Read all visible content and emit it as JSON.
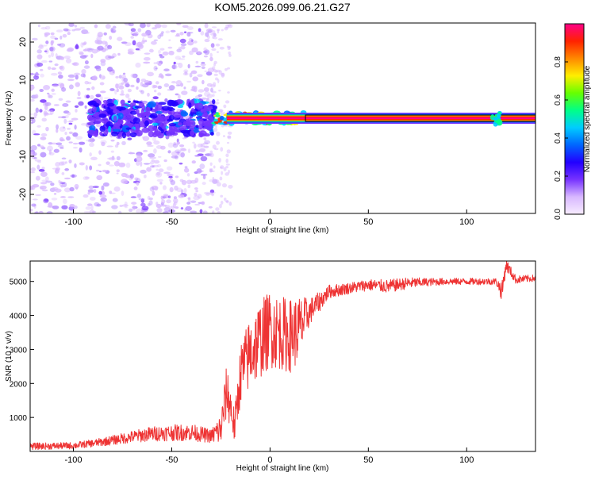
{
  "title": "KOM5.2026.099.06.21.G27",
  "chart_data": [
    {
      "type": "heatmap",
      "title": "",
      "xlabel": "Height of straight line (km)",
      "ylabel": "Frequency (Hz)",
      "xlim": [
        -122,
        135
      ],
      "ylim": [
        -25,
        25
      ],
      "xticks": [
        -100,
        -50,
        0,
        50,
        100
      ],
      "yticks": [
        -20,
        -10,
        0,
        10,
        20
      ],
      "colorbar": {
        "label": "Normalized spectral amplitude",
        "range": [
          0,
          1
        ],
        "ticks": [
          0.0,
          0.2,
          0.4,
          0.6,
          0.8
        ],
        "colors": [
          "#f7ecff",
          "#d8b8ff",
          "#7733ff",
          "#2200ff",
          "#0066ff",
          "#00ccff",
          "#00ff88",
          "#66ff00",
          "#ffee00",
          "#ff8800",
          "#ff2200",
          "#ff0088"
        ]
      },
      "features": {
        "scatter_noise_region": [
          -122,
          -28
        ],
        "dense_band_region": [
          -92,
          -28
        ],
        "transition_region": [
          -28,
          18
        ],
        "carrier_line_region": [
          18,
          135
        ],
        "carrier_frequency": 0
      }
    },
    {
      "type": "line",
      "title": "",
      "xlabel": "Height of straight line (km)",
      "ylabel": "SNR (10 * v/v)",
      "xlim": [
        -122,
        135
      ],
      "ylim": [
        0,
        5600
      ],
      "xticks": [
        -100,
        -50,
        0,
        50,
        100
      ],
      "yticks": [
        1000,
        2000,
        3000,
        4000,
        5000
      ],
      "color": "#ee3333",
      "series": [
        {
          "values_x": [
            -122,
            -110,
            -100,
            -90,
            -80,
            -70,
            -60,
            -50,
            -40,
            -30,
            -25,
            -22,
            -20,
            -18,
            -15,
            -10,
            -5,
            0,
            5,
            10,
            15,
            20,
            25,
            30,
            40,
            50,
            60,
            70,
            80,
            90,
            100,
            110,
            115,
            118,
            120,
            125,
            135
          ],
          "values_y": [
            150,
            160,
            170,
            240,
            330,
            430,
            520,
            550,
            560,
            450,
            650,
            1800,
            1300,
            700,
            2300,
            2900,
            3300,
            3600,
            3500,
            3400,
            3600,
            4100,
            4400,
            4700,
            4800,
            4900,
            4850,
            4950,
            4980,
            5000,
            5000,
            5000,
            5000,
            4700,
            5500,
            5050,
            5100
          ],
          "noise_amp": [
            100,
            100,
            100,
            110,
            140,
            180,
            220,
            240,
            250,
            200,
            500,
            800,
            700,
            500,
            900,
            1100,
            1150,
            1150,
            1100,
            1100,
            1000,
            400,
            300,
            200,
            170,
            170,
            200,
            170,
            120,
            100,
            100,
            100,
            100,
            300,
            200,
            120,
            100
          ]
        }
      ]
    }
  ]
}
